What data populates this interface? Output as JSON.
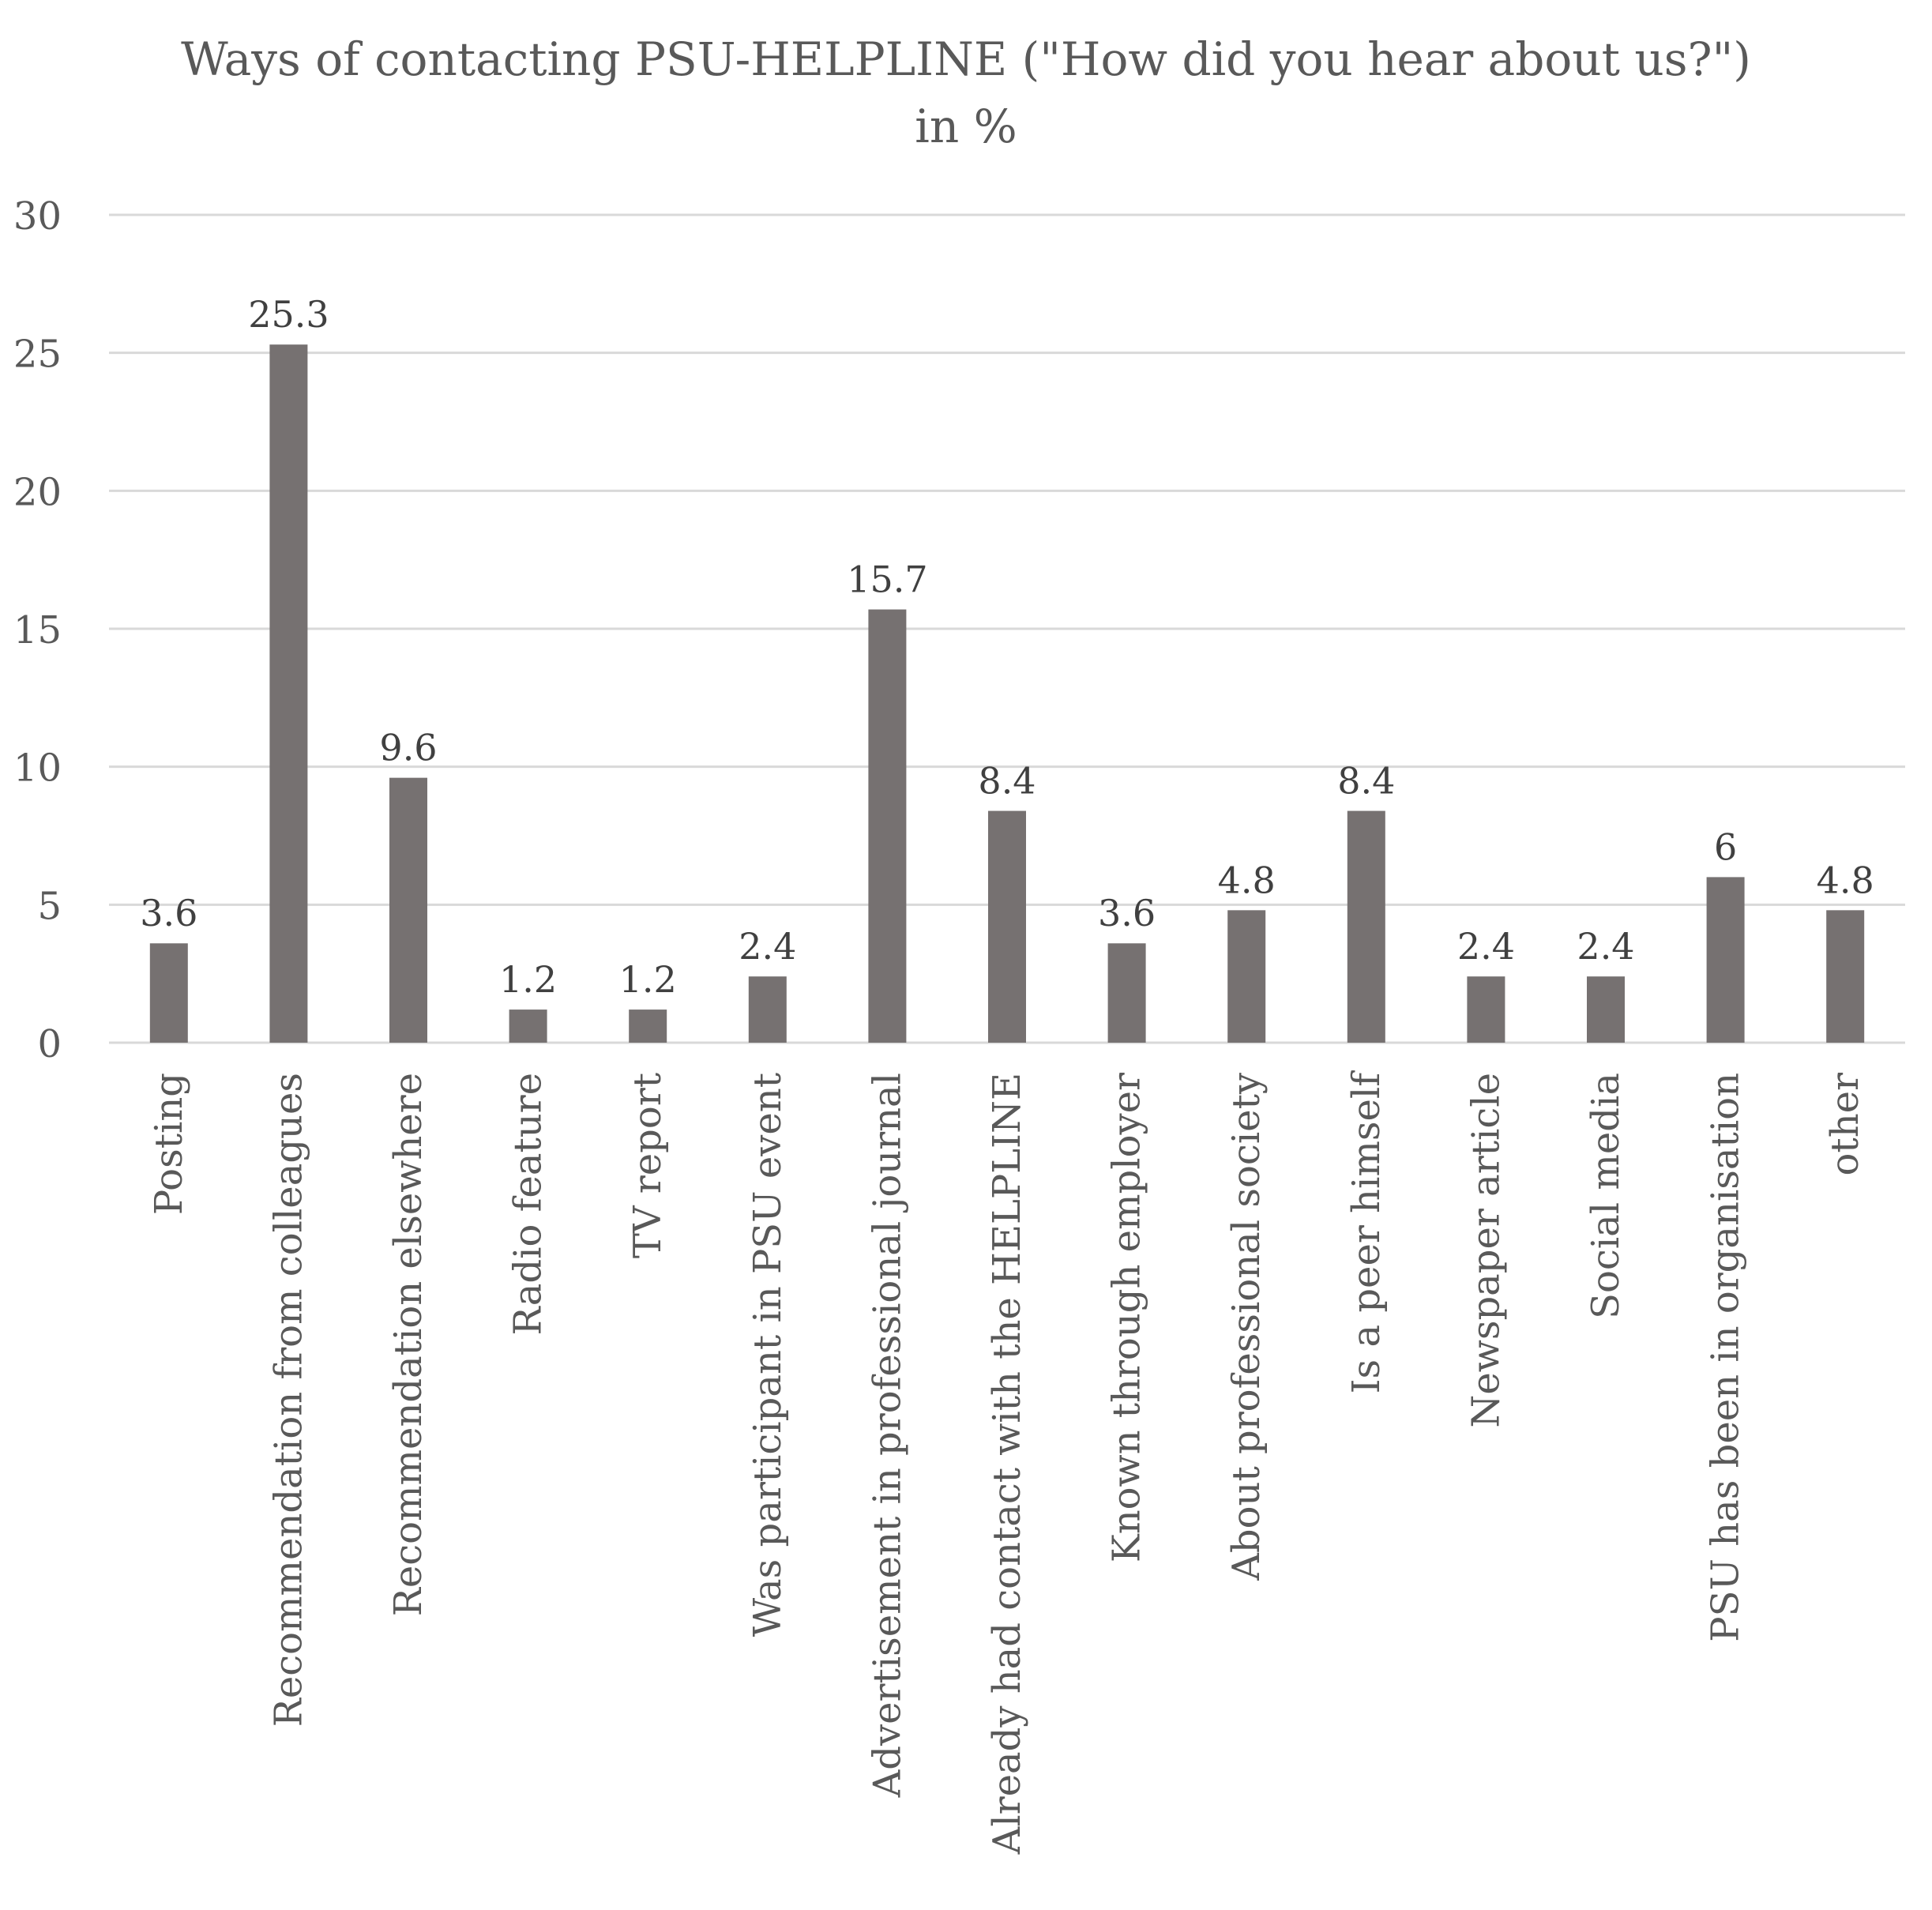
{
  "chart_data": {
    "type": "bar",
    "title": "Ways of contacting PSU-HELPLINE (\"How did you hear about us?\")",
    "subtitle": "in %",
    "xlabel": "",
    "ylabel": "",
    "ylim": [
      0,
      30
    ],
    "yticks": [
      0,
      5,
      10,
      15,
      20,
      25,
      30
    ],
    "grid": true,
    "legend": "none",
    "categories": [
      "Posting",
      "Recommendation from colleagues",
      "Recommendation elsewhere",
      "Radio feature",
      "TV report",
      "Was participant in PSU event",
      "Advertisement in professional journal",
      "Already had contact with the HELPLINE",
      "Known through employer",
      "About professional society",
      "Is a peer himself",
      "Newspaper article",
      "Social media",
      "PSU has been in organisation",
      "other"
    ],
    "values": [
      3.6,
      25.3,
      9.6,
      1.2,
      1.2,
      2.4,
      15.7,
      8.4,
      3.6,
      4.8,
      8.4,
      2.4,
      2.4,
      6,
      4.8
    ],
    "data_labels": [
      "3.6",
      "25.3",
      "9.6",
      "1.2",
      "1.2",
      "2.4",
      "15.7",
      "8.4",
      "3.6",
      "4.8",
      "8.4",
      "2.4",
      "2.4",
      "6",
      "4.8"
    ],
    "bar_color": "#767171",
    "grid_color": "#d9d9d9",
    "text_color": "#595959",
    "label_color": "#404040"
  }
}
